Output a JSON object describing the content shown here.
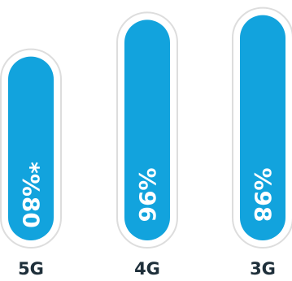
{
  "chart_data": {
    "type": "bar",
    "orientation": "vertical",
    "title": "",
    "xlabel": "",
    "ylabel": "",
    "grid": false,
    "legend": "none",
    "categories": [
      "5G",
      "4G",
      "3G"
    ],
    "values": [
      80,
      96,
      98
    ],
    "value_labels": [
      "*%80",
      "%96",
      "%98"
    ],
    "ylim": [
      0,
      100
    ],
    "colors": {
      "bar": "#12a3dd",
      "track_fill": "#ffffff",
      "track_border": "#dddddd",
      "label": "#1e2f3a",
      "value_text": "#ffffff"
    }
  }
}
